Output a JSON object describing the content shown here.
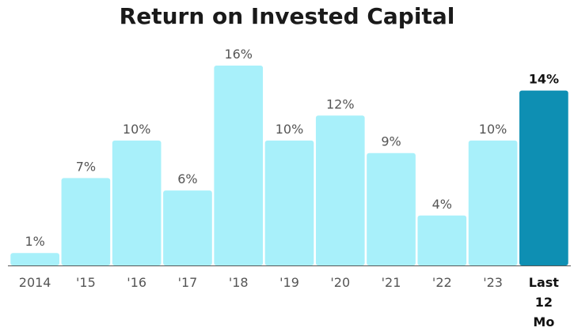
{
  "chart_data": {
    "type": "bar",
    "title": "Return on Invested Capital",
    "categories": [
      "2014",
      "'15",
      "'16",
      "'17",
      "'18",
      "'19",
      "'20",
      "'21",
      "'22",
      "'23",
      "Last 12 Mo"
    ],
    "values": [
      1,
      7,
      10,
      6,
      16,
      10,
      12,
      9,
      4,
      10,
      14
    ],
    "data_labels": [
      "1%",
      "7%",
      "10%",
      "6%",
      "16%",
      "10%",
      "12%",
      "9%",
      "4%",
      "10%",
      "14%"
    ],
    "highlight_index": 10,
    "colors": {
      "bar": "#a8f0fa",
      "highlight": "#0e8fb3",
      "label": "#555555",
      "highlight_label": "#111111",
      "axis": "#555555"
    },
    "xlabel": "",
    "ylabel": "",
    "ylim": [
      0,
      16
    ],
    "grid": false,
    "legend": "none"
  }
}
